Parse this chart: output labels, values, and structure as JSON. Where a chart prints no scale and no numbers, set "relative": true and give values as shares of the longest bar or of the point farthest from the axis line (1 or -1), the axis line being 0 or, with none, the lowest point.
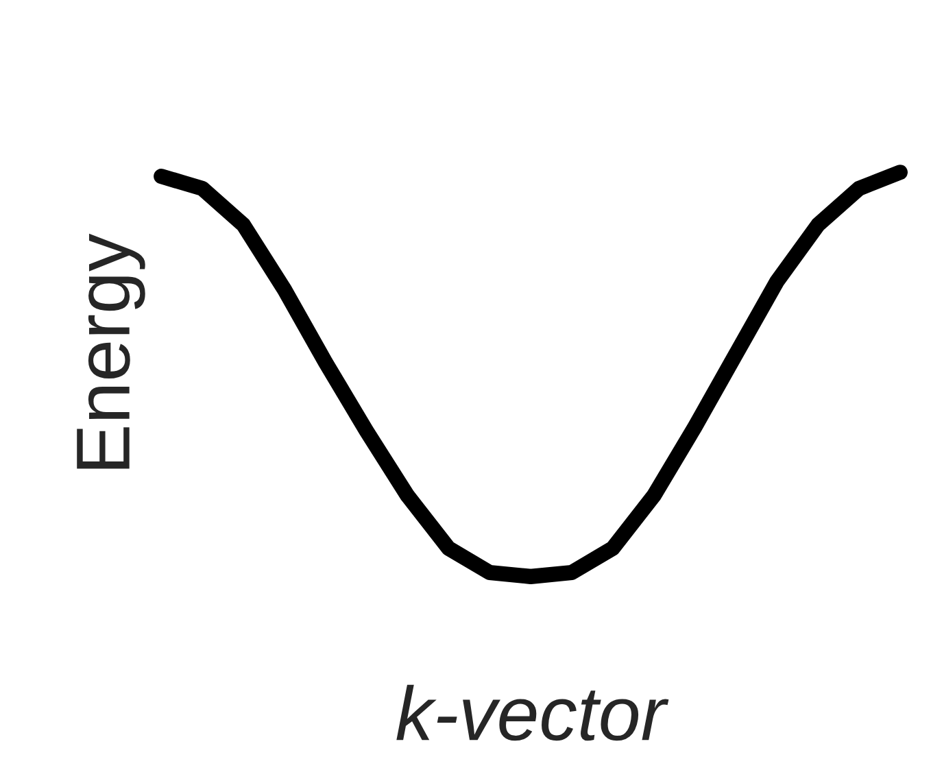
{
  "chart_data": {
    "type": "line",
    "relative": true,
    "xlabel": "k-vector",
    "ylabel": "Energy",
    "categories": [
      null,
      null,
      null,
      null,
      null,
      null,
      null,
      null,
      null,
      null,
      null,
      null,
      null,
      null,
      null,
      null,
      null,
      null,
      null
    ],
    "series": [
      {
        "color": "#000000",
        "values": [
          0.99,
          0.96,
          0.87,
          0.71,
          0.53,
          0.36,
          0.2,
          0.07,
          0.01,
          0,
          0.01,
          0.07,
          0.2,
          0.37,
          0.55,
          0.73,
          0.87,
          0.96,
          1
        ]
      }
    ],
    "grid": false,
    "legend": false,
    "marker": "none",
    "line_style": "solid"
  }
}
